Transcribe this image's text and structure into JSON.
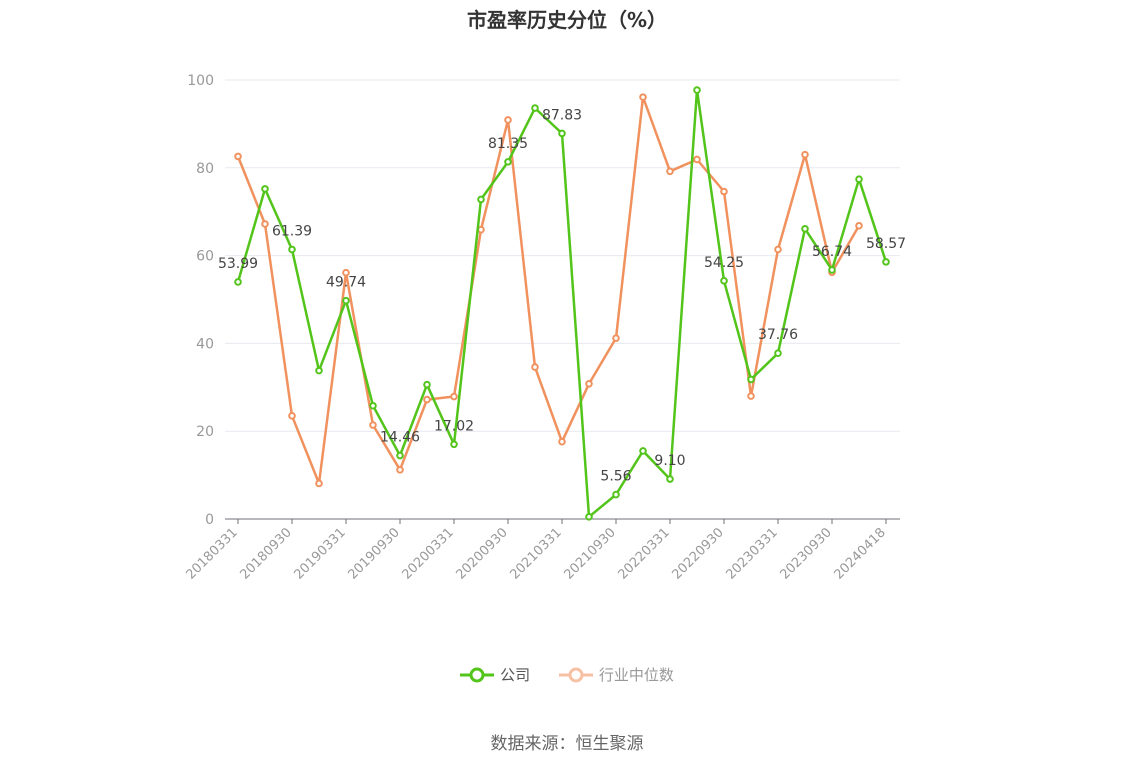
{
  "chart_data": {
    "type": "line",
    "title": "市盈率历史分位（%）",
    "xlabel": "",
    "ylabel": "",
    "ylim": [
      0,
      100
    ],
    "yticks": [
      0,
      20,
      40,
      60,
      80,
      100
    ],
    "grid": true,
    "legend_position": "bottom",
    "xtick_labels": [
      "20180331",
      "20180930",
      "20190331",
      "20190930",
      "20200331",
      "20200930",
      "20210331",
      "20210930",
      "20220331",
      "20220930",
      "20230331",
      "20230930",
      "20240418"
    ],
    "x": [
      "20180331",
      "20180630",
      "20180930",
      "20181231",
      "20190331",
      "20190630",
      "20190930",
      "20191231",
      "20200331",
      "20200630",
      "20200930",
      "20201231",
      "20210331",
      "20210630",
      "20210930",
      "20211231",
      "20220331",
      "20220630",
      "20220930",
      "20221231",
      "20230331",
      "20230630",
      "20230930",
      "20231231",
      "20240418"
    ],
    "series": [
      {
        "name": "公司",
        "color": "#52c41a",
        "values": [
          53.99,
          75.2,
          61.39,
          33.8,
          49.74,
          25.8,
          14.46,
          30.6,
          17.02,
          72.8,
          81.35,
          93.6,
          87.83,
          0.5,
          5.56,
          15.5,
          9.1,
          97.7,
          54.25,
          31.8,
          37.76,
          66.1,
          56.74,
          77.4,
          58.57
        ],
        "labels": {
          "0": "53.99",
          "2": "61.39",
          "4": "49.74",
          "6": "14.46",
          "8": "17.02",
          "10": "81.35",
          "12": "87.83",
          "14": "5.56",
          "16": "9.10",
          "18": "54.25",
          "20": "37.76",
          "22": "56.74",
          "24": "58.57"
        }
      },
      {
        "name": "行业中位数",
        "color": "#f0915e",
        "values": [
          82.6,
          67.2,
          23.5,
          8.1,
          56.1,
          21.4,
          11.2,
          27.2,
          27.9,
          65.9,
          90.9,
          34.6,
          17.6,
          30.8,
          41.2,
          96.1,
          79.2,
          81.9,
          74.6,
          28.0,
          61.4,
          83.0,
          56.2,
          66.8,
          null
        ]
      }
    ]
  },
  "legend": {
    "company_label": "公司",
    "industry_label": "行业中位数"
  },
  "source": "数据来源：恒生聚源"
}
